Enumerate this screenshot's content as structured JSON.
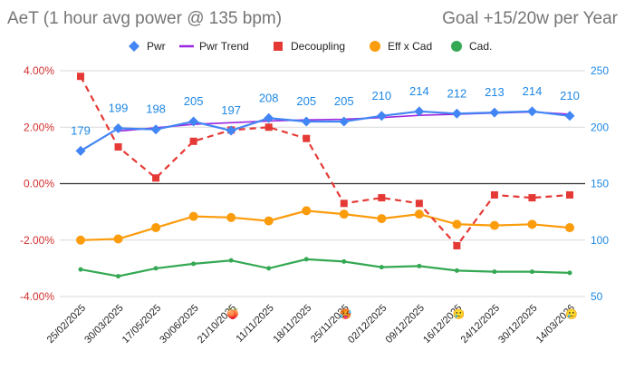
{
  "chart_data": {
    "type": "line",
    "title": "AeT (1 hour avg power @ 135 bpm)",
    "subtitle": "Goal +15/20w per Year",
    "categories": [
      "25/02/2025",
      "30/03/2025",
      "17/05/2025",
      "30/06/2025",
      "21/10/2025",
      "11/11/2025",
      "18/11/2025",
      "25/11/2025",
      "02/12/2025",
      "09/12/2025",
      "16/12/2025",
      "24/12/2025",
      "30/12/2025",
      "14/03/2026"
    ],
    "category_emojis": [
      "",
      "",
      "",
      "",
      "🍑",
      "",
      "",
      "🥵",
      "",
      "",
      "🥲",
      "",
      "",
      "🥲"
    ],
    "legend": {
      "position": "top"
    },
    "left_axis": {
      "ylim": [
        -4,
        4
      ],
      "ticks": [
        "4.00%",
        "2.00%",
        "0.00%",
        "-2.00%",
        "-4.00%"
      ],
      "tick_values": [
        4,
        2,
        0,
        -2,
        -4
      ],
      "color": "#d32f2f"
    },
    "right_axis": {
      "ylim": [
        50,
        250
      ],
      "ticks": [
        "250",
        "200",
        "150",
        "100",
        "50"
      ],
      "tick_values": [
        250,
        200,
        150,
        100,
        50
      ],
      "color": "#1e88e5"
    },
    "grid": true,
    "series": [
      {
        "name": "Pwr",
        "axis": "right",
        "color": "#4285f4",
        "style": "solid",
        "marker": "diamond",
        "values": [
          179,
          199,
          198,
          205,
          197,
          208,
          205,
          205,
          210,
          214,
          212,
          213,
          214,
          210
        ],
        "labels": [
          "179",
          "199",
          "198",
          "205",
          "197",
          "208",
          "205",
          "205",
          "210",
          "214",
          "212",
          "213",
          "214",
          "210"
        ]
      },
      {
        "name": "Pwr Trend",
        "axis": "right",
        "color": "#9c27e0",
        "style": "solid",
        "marker": "none",
        "values": [
          null,
          196.5,
          199.5,
          202.5,
          204,
          205.5,
          206.5,
          207,
          208.5,
          210.5,
          211.5,
          212.5,
          213.5,
          211.5
        ]
      },
      {
        "name": "Decoupling",
        "axis": "left",
        "color": "#e53935",
        "style": "dashed",
        "marker": "square",
        "values": [
          3.8,
          1.3,
          0.2,
          1.5,
          1.9,
          2.0,
          1.6,
          -0.7,
          -0.5,
          -0.7,
          -2.2,
          -0.4,
          -0.5,
          -0.4
        ]
      },
      {
        "name": "Eff x Cad",
        "axis": "right",
        "color": "#fb9c0c",
        "style": "solid",
        "marker": "circle",
        "values": [
          100,
          101,
          111,
          121,
          120,
          117,
          126,
          123,
          119,
          123,
          114,
          113,
          114,
          111
        ]
      },
      {
        "name": "Cad.",
        "axis": "right",
        "color": "#34a853",
        "style": "solid",
        "marker": "dot",
        "values": [
          74,
          68,
          75,
          79,
          82,
          75,
          83,
          81,
          76,
          77,
          73,
          72,
          72,
          71
        ]
      }
    ]
  }
}
